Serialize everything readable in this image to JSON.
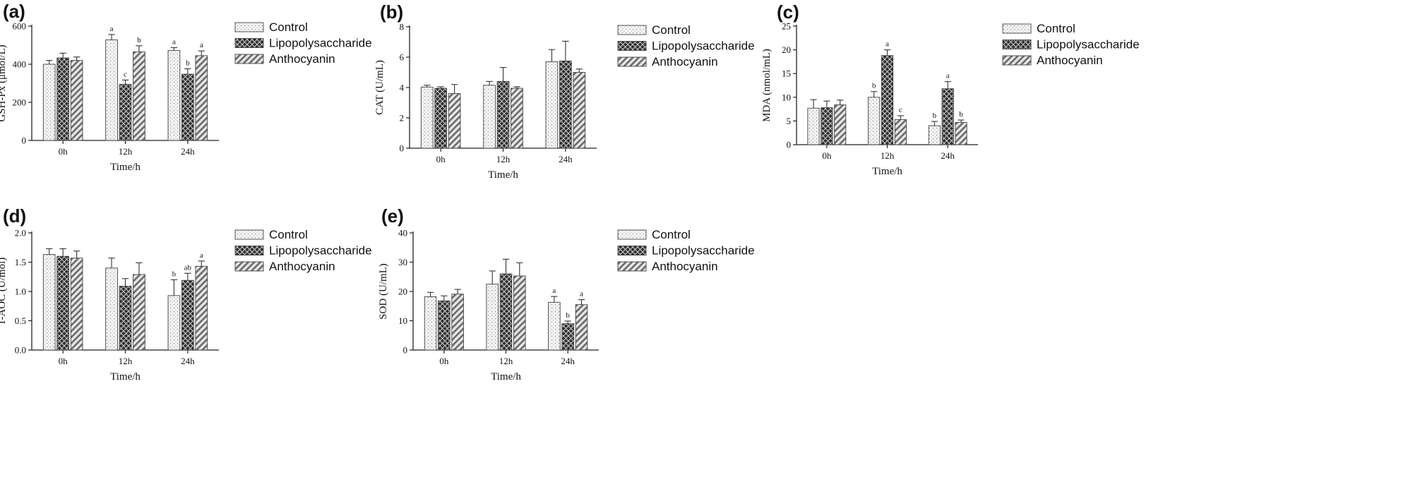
{
  "chart_data": [
    {
      "type": "bar",
      "panel_label": "(a)",
      "categories": [
        "0h",
        "12h",
        "24h"
      ],
      "xlabel": "Time/h",
      "ylabel": "GSH-Px (μmol/L)",
      "ylim": [
        0,
        600
      ],
      "yticks": [
        "0",
        "200",
        "400",
        "600"
      ],
      "legend_position": "right",
      "series": [
        {
          "name": "Control",
          "values": [
            400,
            528,
            472
          ],
          "errors": [
            20,
            28,
            15
          ],
          "sig": [
            "",
            "a",
            "a"
          ]
        },
        {
          "name": "Lipopolysaccharide",
          "values": [
            433,
            295,
            348
          ],
          "errors": [
            25,
            22,
            28
          ],
          "sig": [
            "",
            "c",
            "b"
          ]
        },
        {
          "name": "Anthocyanin",
          "values": [
            420,
            465,
            445
          ],
          "errors": [
            18,
            32,
            25
          ],
          "sig": [
            "",
            "b",
            "a"
          ]
        }
      ]
    },
    {
      "type": "bar",
      "panel_label": "(b)",
      "categories": [
        "0h",
        "12h",
        "24h"
      ],
      "xlabel": "Time/h",
      "ylabel": "CAT (U/mL)",
      "ylim": [
        0,
        8
      ],
      "yticks": [
        "0",
        "2",
        "4",
        "6",
        "8"
      ],
      "legend_position": "right",
      "series": [
        {
          "name": "Control",
          "values": [
            4.03,
            4.15,
            5.7
          ],
          "errors": [
            0.12,
            0.25,
            0.8
          ],
          "sig": [
            "",
            "",
            ""
          ]
        },
        {
          "name": "Lipopolysaccharide",
          "values": [
            3.95,
            4.4,
            5.75
          ],
          "errors": [
            0.1,
            0.92,
            1.3
          ],
          "sig": [
            "",
            "",
            ""
          ]
        },
        {
          "name": "Anthocyanin",
          "values": [
            3.6,
            3.95,
            5.0
          ],
          "errors": [
            0.6,
            0.1,
            0.22
          ],
          "sig": [
            "",
            "",
            ""
          ]
        }
      ]
    },
    {
      "type": "bar",
      "panel_label": "(c)",
      "categories": [
        "0h",
        "12h",
        "24h"
      ],
      "xlabel": "Time/h",
      "ylabel": "MDA (nmol/mL)",
      "ylim": [
        0,
        25
      ],
      "yticks": [
        "0",
        "5",
        "10",
        "15",
        "20",
        "25"
      ],
      "legend_position": "right",
      "series": [
        {
          "name": "Control",
          "values": [
            7.7,
            10.0,
            4.0
          ],
          "errors": [
            1.8,
            1.2,
            0.9
          ],
          "sig": [
            "",
            "b",
            "b"
          ]
        },
        {
          "name": "Lipopolysaccharide",
          "values": [
            7.8,
            18.8,
            11.8
          ],
          "errors": [
            1.4,
            1.2,
            1.5
          ],
          "sig": [
            "",
            "a",
            "a"
          ]
        },
        {
          "name": "Anthocyanin",
          "values": [
            8.4,
            5.3,
            4.7
          ],
          "errors": [
            1.0,
            0.8,
            0.5
          ],
          "sig": [
            "",
            "c",
            "b"
          ]
        }
      ]
    },
    {
      "type": "bar",
      "panel_label": "(d)",
      "categories": [
        "0h",
        "12h",
        "24h"
      ],
      "xlabel": "Time/h",
      "ylabel": "T-AOC (U/mol)",
      "ylim": [
        0,
        2.0
      ],
      "yticks": [
        "0.0",
        "0.5",
        "1.0",
        "1.5",
        "2.0"
      ],
      "legend_position": "right",
      "series": [
        {
          "name": "Control",
          "values": [
            1.63,
            1.4,
            0.93
          ],
          "errors": [
            0.1,
            0.17,
            0.27
          ],
          "sig": [
            "",
            "",
            "b"
          ]
        },
        {
          "name": "Lipopolysaccharide",
          "values": [
            1.6,
            1.09,
            1.19
          ],
          "errors": [
            0.13,
            0.13,
            0.12
          ],
          "sig": [
            "",
            "",
            "ab"
          ]
        },
        {
          "name": "Anthocyanin",
          "values": [
            1.57,
            1.29,
            1.43
          ],
          "errors": [
            0.12,
            0.2,
            0.09
          ],
          "sig": [
            "",
            "",
            "a"
          ]
        }
      ]
    },
    {
      "type": "bar",
      "panel_label": "(e)",
      "categories": [
        "0h",
        "12h",
        "24h"
      ],
      "xlabel": "Time/h",
      "ylabel": "SOD (U/mL)",
      "ylim": [
        0,
        40
      ],
      "yticks": [
        "0",
        "10",
        "20",
        "30",
        "40"
      ],
      "legend_position": "right",
      "series": [
        {
          "name": "Control",
          "values": [
            18.2,
            22.5,
            16.3
          ],
          "errors": [
            1.5,
            4.5,
            2.0
          ],
          "sig": [
            "",
            "",
            "a"
          ]
        },
        {
          "name": "Lipopolysaccharide",
          "values": [
            16.8,
            26.0,
            9.0
          ],
          "errors": [
            1.7,
            5.0,
            0.9
          ],
          "sig": [
            "",
            "",
            "b"
          ]
        },
        {
          "name": "Anthocyanin",
          "values": [
            19.1,
            25.3,
            15.5
          ],
          "errors": [
            1.6,
            4.5,
            1.7
          ],
          "sig": [
            "",
            "",
            "a"
          ]
        }
      ]
    }
  ],
  "colors": {
    "Control": "#f4f4f4",
    "Lipopolysaccharide": "#3a3a3a",
    "Anthocyanin": "#d4d4d4",
    "axis": "#222222"
  }
}
